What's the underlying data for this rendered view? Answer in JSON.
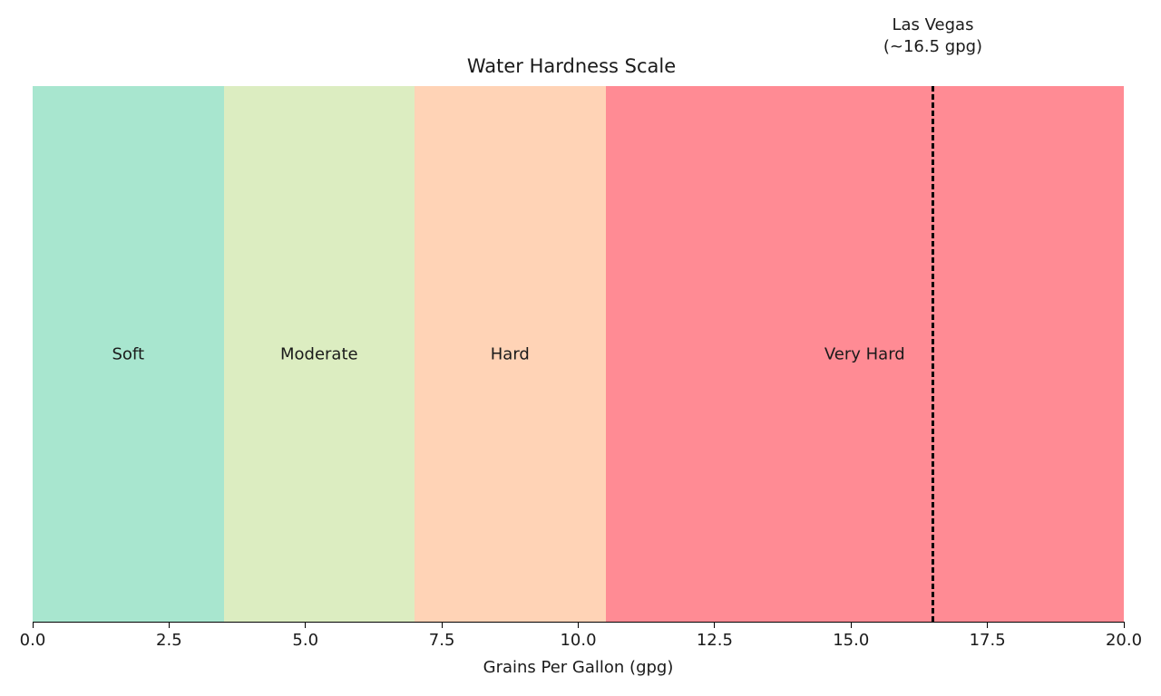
{
  "chart_data": {
    "type": "bar",
    "orientation": "horizontal-bands",
    "title": "Water Hardness Scale",
    "xlabel": "Grains Per Gallon (gpg)",
    "ylabel": "",
    "xlim": [
      0,
      20
    ],
    "xticks": [
      "0.0",
      "2.5",
      "5.0",
      "7.5",
      "10.0",
      "12.5",
      "15.0",
      "17.5",
      "20.0"
    ],
    "grid": false,
    "bands": [
      {
        "label": "Soft",
        "start": 0,
        "end": 3.5,
        "color": "#a8e6cf"
      },
      {
        "label": "Moderate",
        "start": 3.5,
        "end": 7,
        "color": "#dcedc1"
      },
      {
        "label": "Hard",
        "start": 7,
        "end": 10.5,
        "color": "#ffd3b6"
      },
      {
        "label": "Very Hard",
        "start": 10.5,
        "end": 20,
        "color": "#ff8b94"
      }
    ],
    "reference_line": {
      "x": 16.5,
      "style": "dashed",
      "color": "#000000",
      "label_line1": "Las Vegas",
      "label_line2": "(~16.5 gpg)"
    }
  }
}
